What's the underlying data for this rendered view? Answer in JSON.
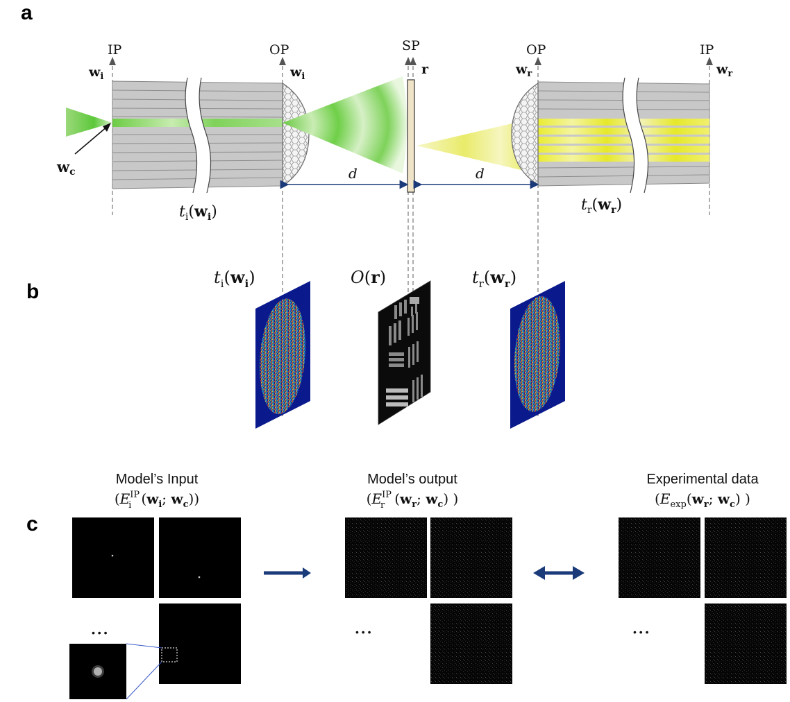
{
  "panels": {
    "a": "a",
    "b": "b",
    "c": "c"
  },
  "plane_labels": {
    "ip_left": "IP",
    "op_left": "OP",
    "sp": "SP",
    "op_right": "OP",
    "ip_right": "IP"
  },
  "vector_labels": {
    "w_i_left": "w",
    "w_i_left_sub": "i",
    "w_i_op": "w",
    "w_i_op_sub": "i",
    "r": "r",
    "w_r_op": "w",
    "w_r_op_sub": "r",
    "w_r_right": "w",
    "w_r_right_sub": "r",
    "w_c": "w",
    "w_c_sub": "c"
  },
  "distances": {
    "left": "d",
    "right": "d"
  },
  "transfer_labels": {
    "ti": {
      "t": "t",
      "sub": "i",
      "open": "(",
      "w": "w",
      "wsub": "i",
      "close": ")"
    },
    "tr": {
      "t": "t",
      "sub": "r",
      "open": "(",
      "w": "w",
      "wsub": "r",
      "close": ")"
    },
    "obj": {
      "o": "O",
      "open": "(",
      "r": "r",
      "close": ")"
    }
  },
  "section_c": {
    "input_title": "Model’s Input",
    "input_formula": {
      "open": "(",
      "E": "E",
      "sup": "IP",
      "sub": "i",
      "lp": "(",
      "w": "w",
      "wsub": "i",
      "sep": "; ",
      "w2": "w",
      "w2sub": "c",
      "close": "))"
    },
    "output_title": "Model’s output",
    "output_formula": {
      "open": "(",
      "E": "E",
      "sup": "IP",
      "sub": "r",
      "lp": "(",
      "w": "w",
      "wsub": "r",
      "sep": "; ",
      "w2": "w",
      "w2sub": "c",
      "close": ") )"
    },
    "exp_title": "Experimental data",
    "exp_formula": {
      "open": "(",
      "E": "E",
      "sub": "exp",
      "lp": "(",
      "w": "w",
      "wsub": "r",
      "sep": "; ",
      "w2": "w",
      "w2sub": "c",
      "close": ") )"
    },
    "ellipsis": "• • •",
    "ellipsis_plain": "• • •"
  },
  "colors": {
    "green": "#5cc83a",
    "yellow": "#e6e82a",
    "fiber": "#c8c8c8",
    "navy": "#0a1a8c",
    "arrow_blue": "#1a3a7a"
  }
}
